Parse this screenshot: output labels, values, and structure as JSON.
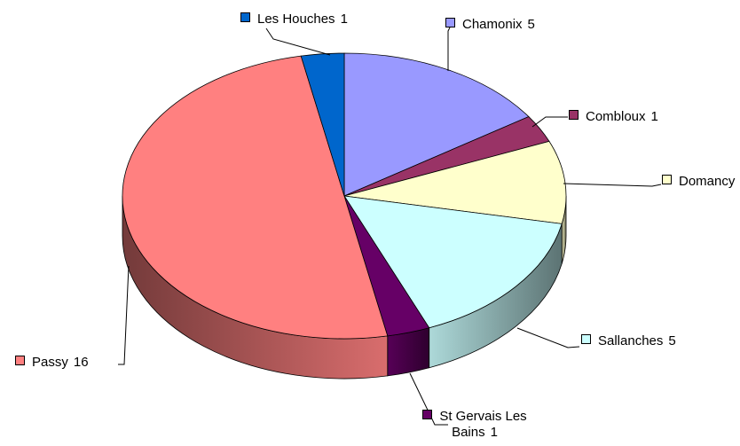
{
  "chart_data": {
    "type": "pie3d",
    "categories": [
      "Chamonix",
      "Combloux",
      "Domancy",
      "Sallanches",
      "St Gervais Les Bains",
      "Passy",
      "Les Houches"
    ],
    "values": [
      5,
      1,
      3,
      5,
      1,
      16,
      1
    ],
    "colors": [
      "#9999ff",
      "#993366",
      "#ffffcc",
      "#ccffff",
      "#660066",
      "#ff8080",
      "#0066cc"
    ]
  }
}
